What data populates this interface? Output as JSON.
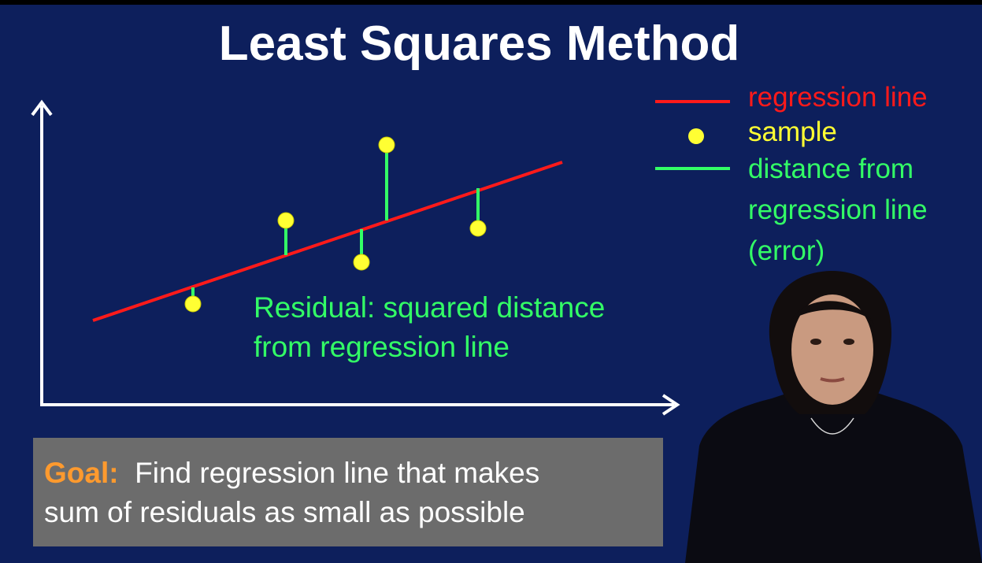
{
  "slide": {
    "title": "Least Squares Method",
    "legend": {
      "regression_line": "regression line",
      "sample": "sample",
      "distance_lines": [
        "distance from",
        "regression line",
        "(error)"
      ]
    },
    "residual_lines": [
      "Residual:  squared distance",
      "from regression line"
    ],
    "goal": {
      "label": "Goal:",
      "text_line1": "  Find regression line that makes",
      "text_line2": "sum of residuals as small as possible"
    }
  },
  "colors": {
    "background": "#0d1f5c",
    "regression_line": "#ff1a1a",
    "sample": "#ffff33",
    "distance": "#33ff66",
    "axes": "#ffffff",
    "goal_box": "#6c6c6c",
    "goal_label": "#ff9a2e"
  }
}
